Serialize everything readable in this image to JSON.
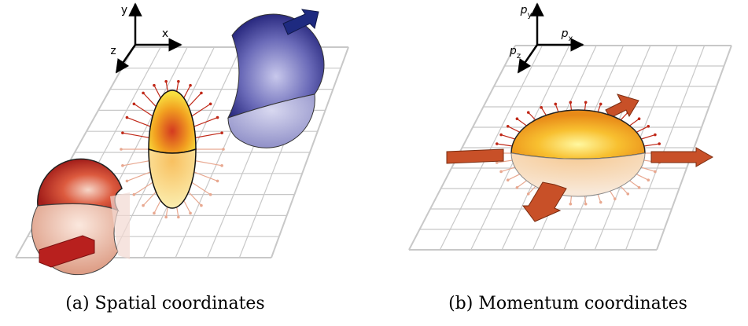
{
  "panels": [
    {
      "axes": {
        "y": {
          "main": "y"
        },
        "x": {
          "main": "x"
        },
        "z": {
          "main": "z"
        }
      },
      "caption": "(a) Spatial coordinates"
    },
    {
      "axes": {
        "y": {
          "main": "p",
          "sub": "y"
        },
        "x": {
          "main": "p",
          "sub": "x"
        },
        "z": {
          "main": "p",
          "sub": "z"
        }
      },
      "caption": "(b) Momentum coordinates"
    }
  ]
}
